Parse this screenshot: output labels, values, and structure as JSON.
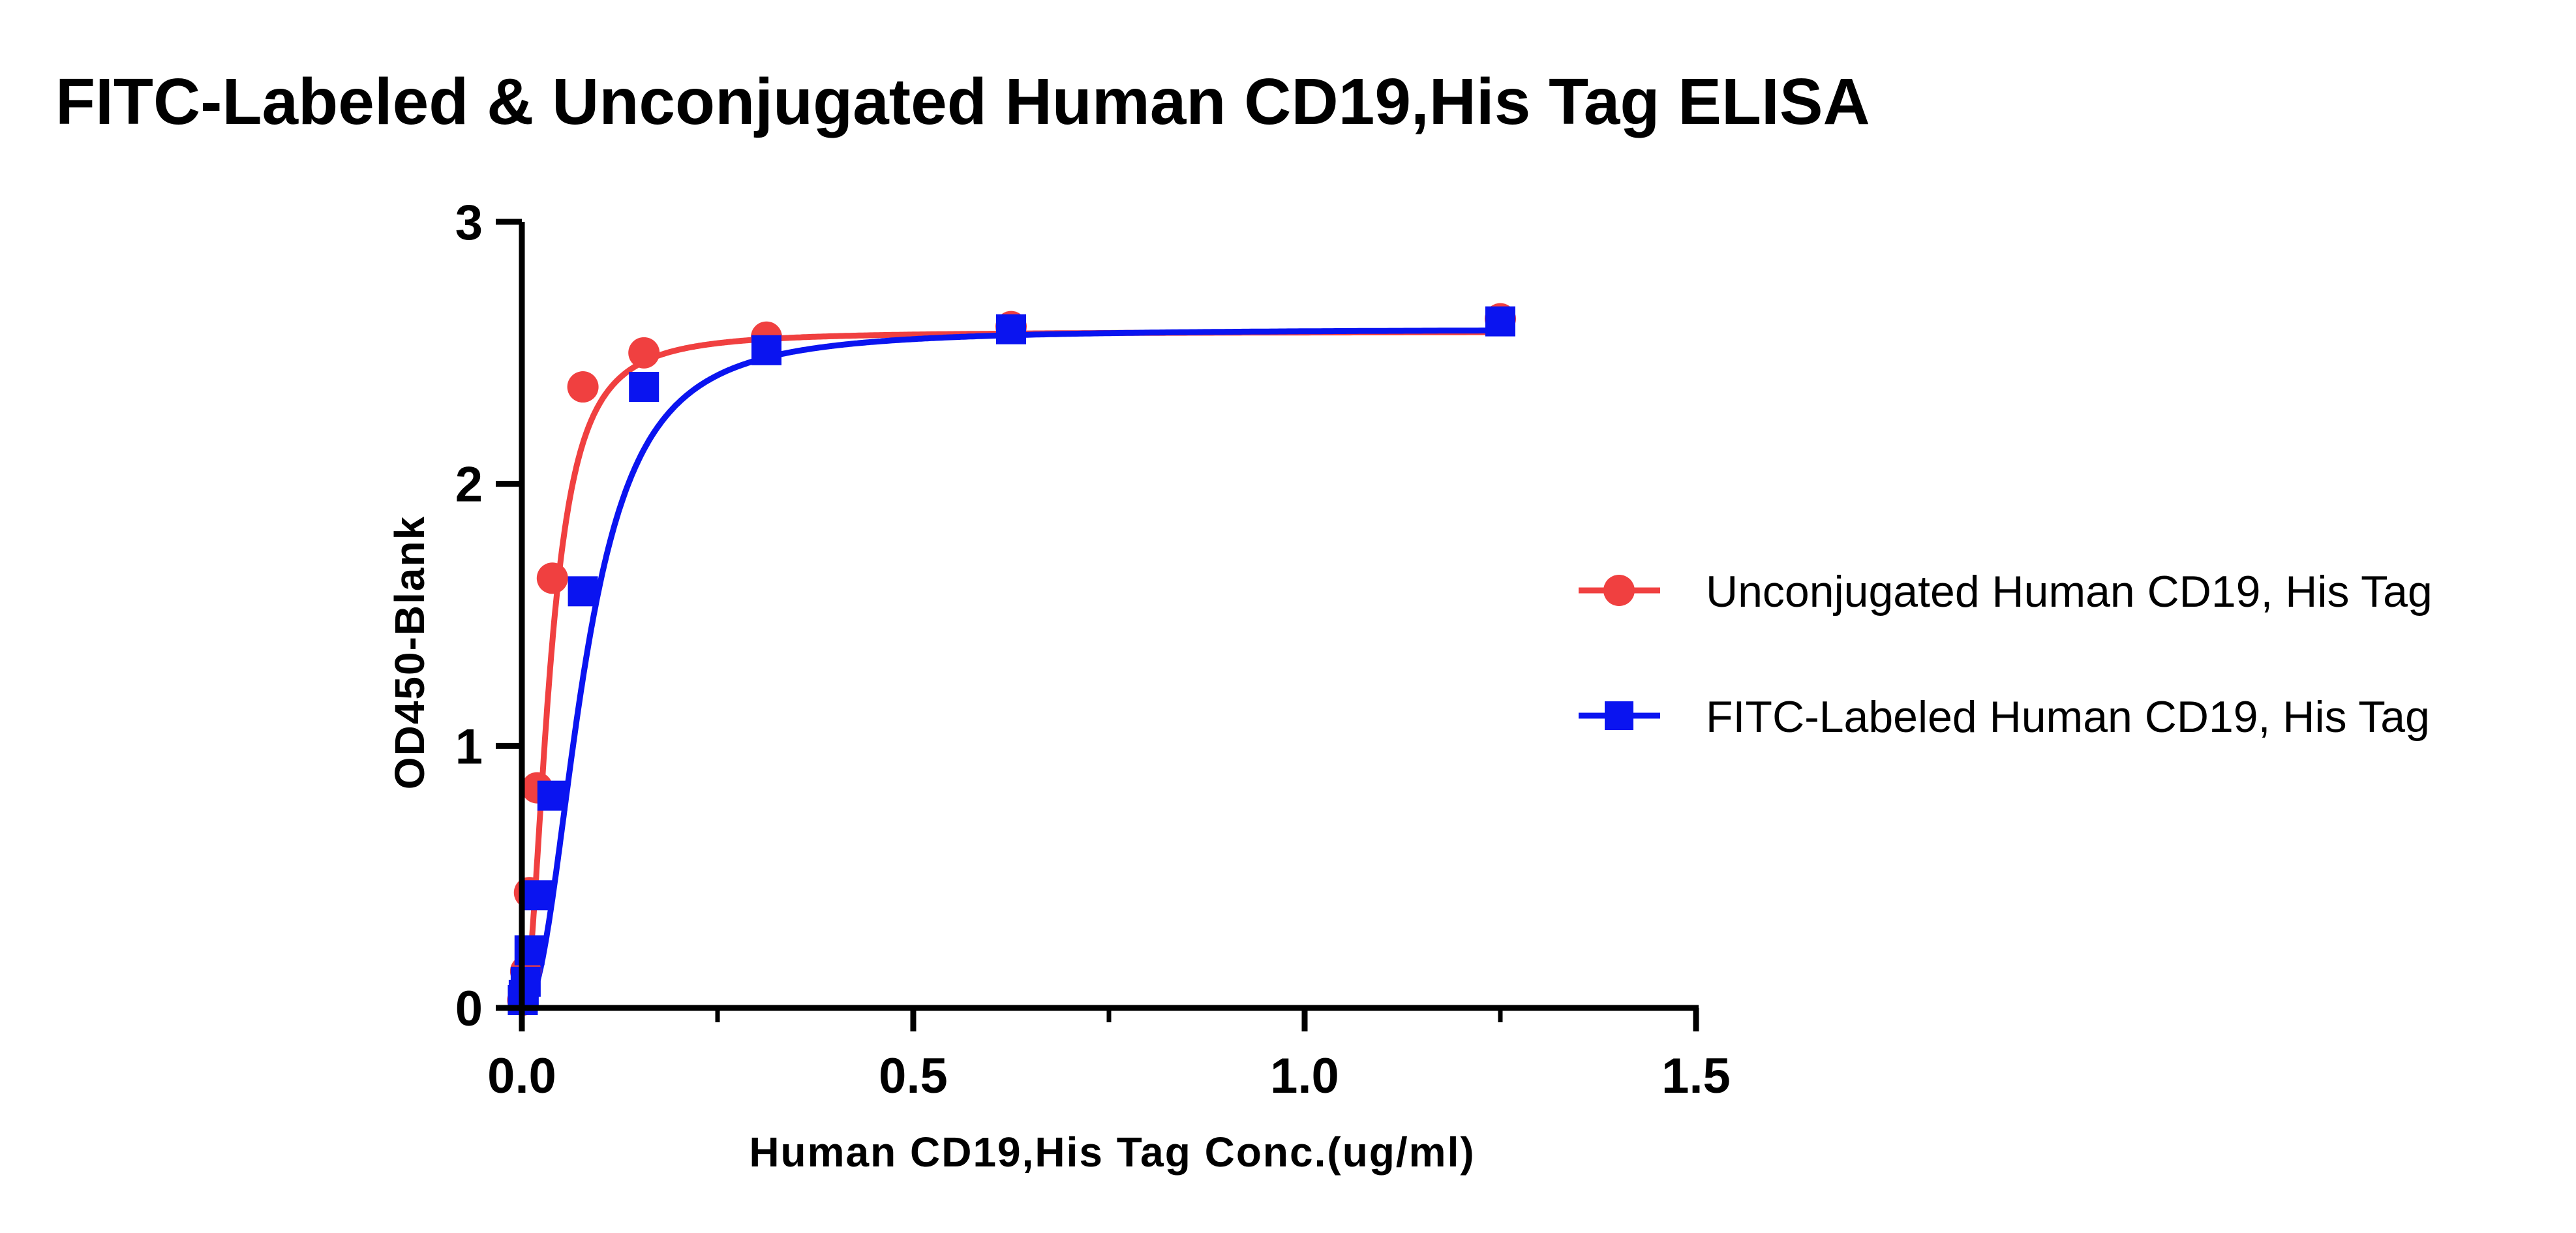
{
  "chart_data": {
    "type": "scatter",
    "title": "FITC-Labeled & Unconjugated Human CD19,His Tag ELISA",
    "xlabel": "Human CD19,His Tag Conc.(ug/ml)",
    "ylabel": "OD450-Blank",
    "xlim": [
      0,
      1.5
    ],
    "ylim": [
      0,
      3
    ],
    "xticks": [
      "0.0",
      "0.5",
      "1.0",
      "1.5"
    ],
    "yticks": [
      "0",
      "1",
      "2",
      "3"
    ],
    "xtick_values": [
      0,
      0.5,
      1.0,
      1.5
    ],
    "ytick_values": [
      0,
      1,
      2,
      3
    ],
    "legend_position": "right",
    "series": [
      {
        "name": "Unconjugated Human CD19, His Tag",
        "marker": "circle",
        "color": "#f04040",
        "x": [
          0.0012,
          0.0024,
          0.0049,
          0.0098,
          0.0195,
          0.039,
          0.078,
          0.156,
          0.3125,
          0.625,
          1.25
        ],
        "y": [
          0.03,
          0.06,
          0.14,
          0.44,
          0.84,
          1.64,
          2.37,
          2.5,
          2.56,
          2.6,
          2.63
        ],
        "fit": {
          "bottom": 0.0,
          "top": 2.58,
          "ec50": 0.036,
          "hill": 2.1
        }
      },
      {
        "name": "FITC-Labeled Human CD19, His Tag",
        "marker": "square",
        "color": "#0a14f0",
        "x": [
          0.0012,
          0.0024,
          0.0049,
          0.0098,
          0.0195,
          0.039,
          0.078,
          0.156,
          0.3125,
          0.625,
          1.25
        ],
        "y": [
          0.03,
          0.05,
          0.1,
          0.22,
          0.43,
          0.81,
          1.59,
          2.37,
          2.51,
          2.59,
          2.62
        ],
        "fit": {
          "bottom": 0.0,
          "top": 2.59,
          "ec50": 0.08,
          "hill": 2.3
        }
      }
    ]
  }
}
